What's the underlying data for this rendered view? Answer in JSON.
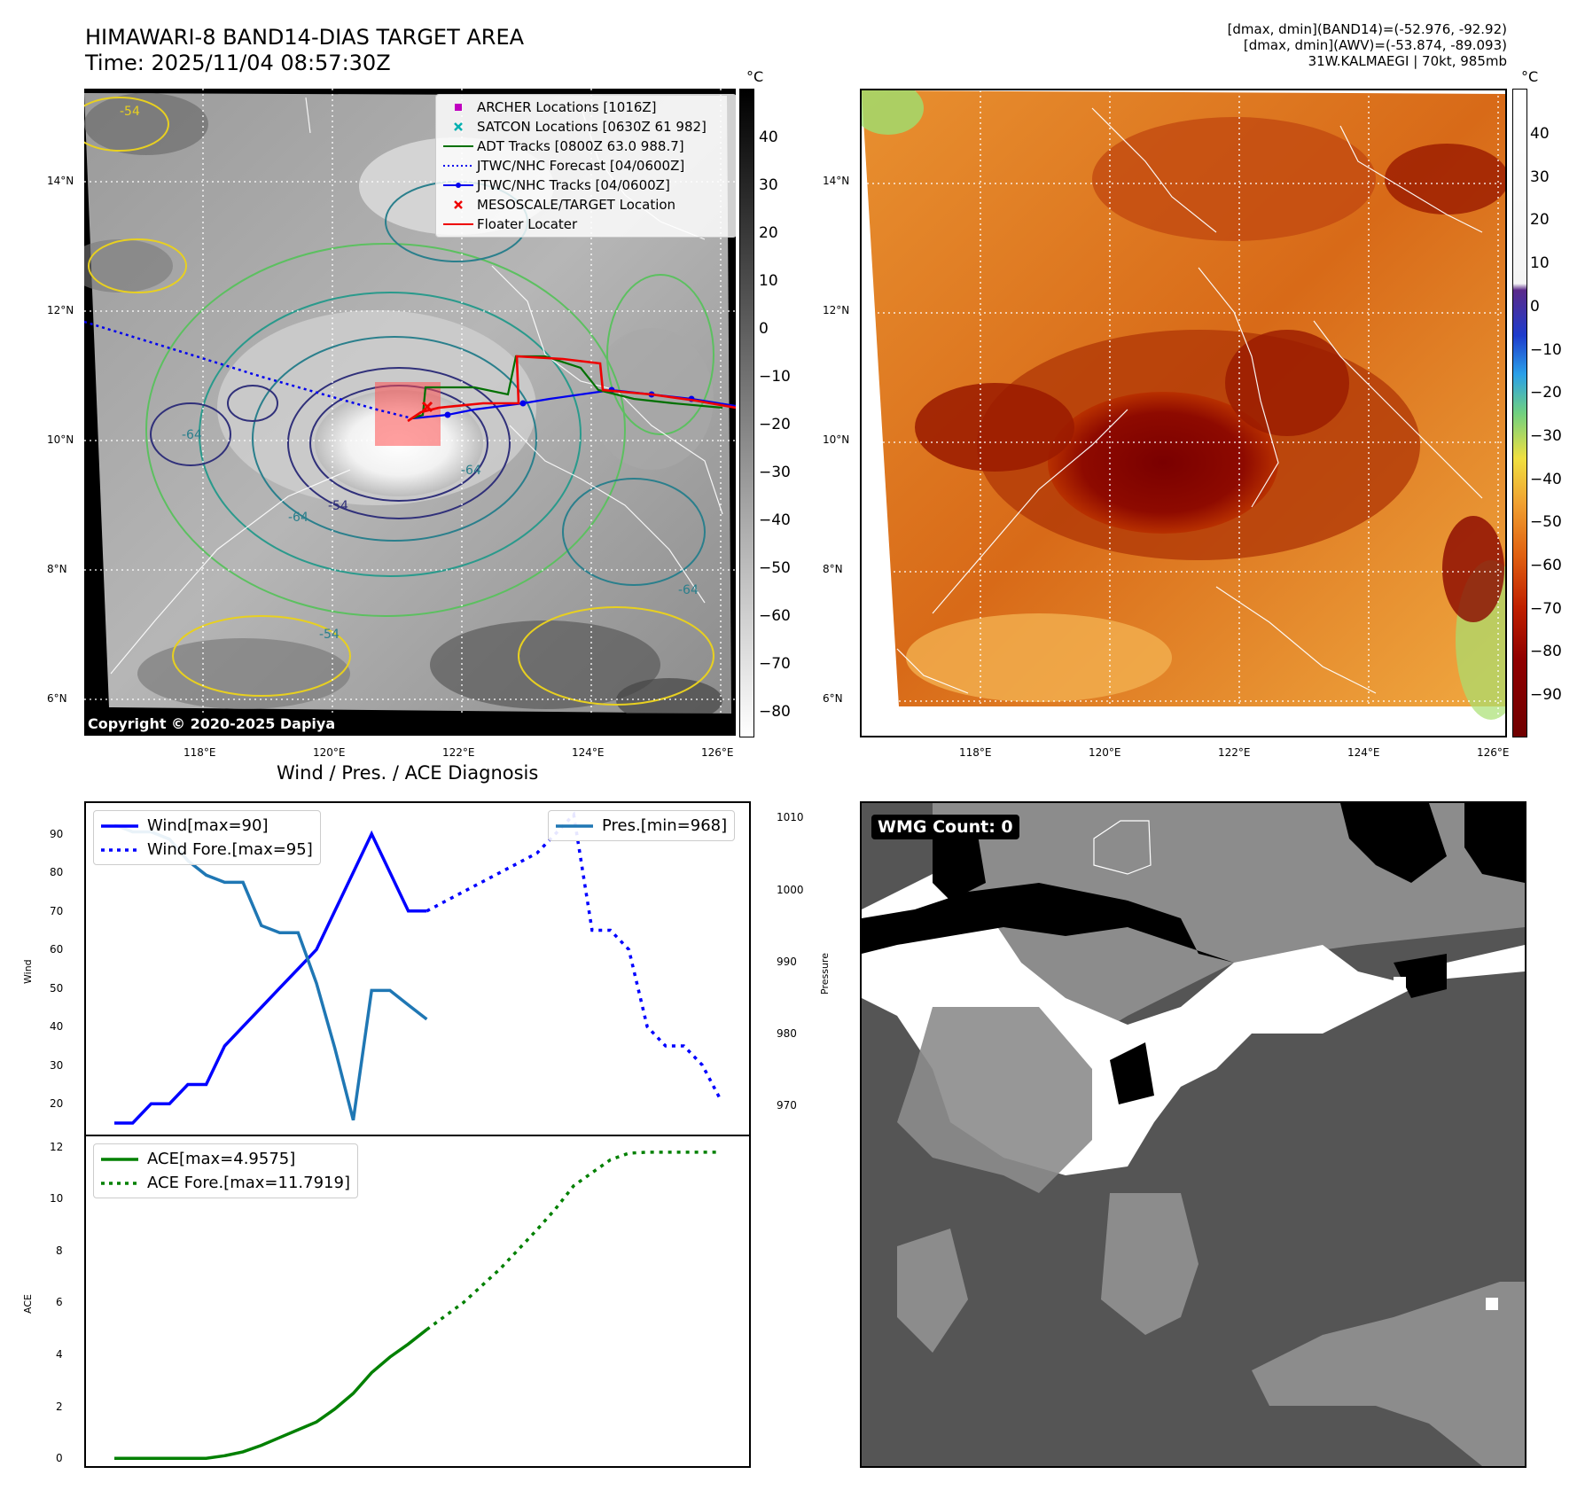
{
  "header": {
    "title_line1": "HIMAWARI-8 BAND14-DIAS TARGET AREA",
    "title_line2": "Time: 2025/11/04 08:57:30Z",
    "info_line1": "[dmax, dmin](BAND14)=(-52.976, -92.92)",
    "info_line2": "[dmax, dmin](AWV)=(-53.874, -89.093)",
    "info_line3": "31W.KALMAEGI | 70kt, 985mb"
  },
  "map": {
    "lat_labels": [
      "14°N",
      "12°N",
      "10°N",
      "8°N",
      "6°N"
    ],
    "lon_labels": [
      "118°E",
      "120°E",
      "122°E",
      "124°E",
      "126°E"
    ],
    "copyright": "Copyright © 2020-2025 Dapiya",
    "colorbar_unit": "°C",
    "colorbar_ticks_left": [
      "40",
      "30",
      "20",
      "10",
      "0",
      "−10",
      "−20",
      "−30",
      "−40",
      "−50",
      "−60",
      "−70",
      "−80"
    ],
    "colorbar_ticks_right": [
      "40",
      "30",
      "20",
      "10",
      "0",
      "−10",
      "−20",
      "−30",
      "−40",
      "−50",
      "−60",
      "−70",
      "−80",
      "−90"
    ],
    "contour_labels": [
      "-64",
      "-54",
      "-64",
      "-54",
      "-64",
      "-64",
      "-54"
    ],
    "legend": [
      {
        "label": "ARCHER Locations [1016Z]",
        "color": "#c000c0",
        "icon": "square-marker"
      },
      {
        "label": "SATCON Locations [0630Z 61 982]",
        "color": "#00b0b0",
        "icon": "x-marker"
      },
      {
        "label": "ADT Tracks [0800Z 63.0 988.7]",
        "color": "#007000",
        "icon": "solid-line"
      },
      {
        "label": "JTWC/NHC Forecast [04/0600Z]",
        "color": "#0000ee",
        "icon": "dotted-line"
      },
      {
        "label": "JTWC/NHC Tracks [04/0600Z]",
        "color": "#0000ee",
        "icon": "line-dot"
      },
      {
        "label": "MESOSCALE/TARGET Location",
        "color": "#ee0000",
        "icon": "x-marker"
      },
      {
        "label": "Floater Locater",
        "color": "#ee0000",
        "icon": "solid-line"
      }
    ]
  },
  "wmg": {
    "label": "WMG Count: 0"
  },
  "chart_data": [
    {
      "type": "line",
      "title": "Wind / Pres. / ACE Diagnosis",
      "ylabel": "Wind",
      "ylabel_right": "Pressure",
      "ylim": [
        12,
        98
      ],
      "ylim_right": [
        966,
        1012
      ],
      "yticks": [
        20,
        30,
        40,
        50,
        60,
        70,
        80,
        90
      ],
      "yticks_right": [
        970,
        980,
        990,
        1000,
        1010
      ],
      "x_index_max": 33,
      "series": [
        {
          "name": "Wind[max=90]",
          "color": "#0000ff",
          "style": "solid",
          "axis": "left",
          "x": [
            0,
            1,
            2,
            3,
            4,
            5,
            6,
            7,
            8,
            9,
            10,
            11,
            12,
            13,
            14,
            15,
            16,
            17
          ],
          "values": [
            15,
            15,
            20,
            20,
            25,
            25,
            35,
            40,
            45,
            50,
            55,
            60,
            70,
            80,
            90,
            80,
            70,
            70
          ]
        },
        {
          "name": "Wind Fore.[max=95]",
          "color": "#0000ff",
          "style": "dotted",
          "axis": "left",
          "x": [
            17,
            19,
            21,
            23,
            24,
            25,
            26,
            27,
            28,
            29,
            30,
            31,
            32,
            33
          ],
          "values": [
            70,
            75,
            80,
            85,
            90,
            95,
            65,
            65,
            60,
            40,
            35,
            35,
            30,
            21
          ]
        },
        {
          "name": "Pres.[min=968]",
          "color": "#1f77b4",
          "style": "solid",
          "axis": "right",
          "x": [
            0,
            1,
            2,
            3,
            4,
            5,
            6,
            7,
            8,
            9,
            10,
            11,
            12,
            13,
            14,
            15,
            16,
            17
          ],
          "values": [
            1009,
            1008,
            1008,
            1007,
            1004,
            1002,
            1001,
            1001,
            995,
            994,
            994,
            987,
            978,
            968,
            986,
            986,
            984,
            982
          ]
        }
      ]
    },
    {
      "type": "line",
      "ylabel": "ACE",
      "ylim": [
        -0.3,
        12.4
      ],
      "yticks": [
        0,
        2,
        4,
        6,
        8,
        10,
        12
      ],
      "x_index_max": 33,
      "series": [
        {
          "name": "ACE[max=4.9575]",
          "color": "#008000",
          "style": "solid",
          "x": [
            0,
            1,
            2,
            3,
            4,
            5,
            6,
            7,
            8,
            9,
            10,
            11,
            12,
            13,
            14,
            15,
            16,
            17
          ],
          "values": [
            0,
            0,
            0,
            0,
            0,
            0,
            0.1,
            0.25,
            0.5,
            0.8,
            1.1,
            1.4,
            1.9,
            2.5,
            3.3,
            3.9,
            4.4,
            4.9575
          ]
        },
        {
          "name": "ACE Fore.[max=11.7919]",
          "color": "#008000",
          "style": "dotted",
          "x": [
            17,
            19,
            21,
            23,
            24,
            25,
            26,
            27,
            28,
            29,
            30,
            31,
            32,
            33
          ],
          "values": [
            4.9575,
            6.0,
            7.3,
            8.8,
            9.6,
            10.5,
            11.0,
            11.5,
            11.75,
            11.79,
            11.79,
            11.79,
            11.79,
            11.7919
          ]
        }
      ]
    }
  ]
}
